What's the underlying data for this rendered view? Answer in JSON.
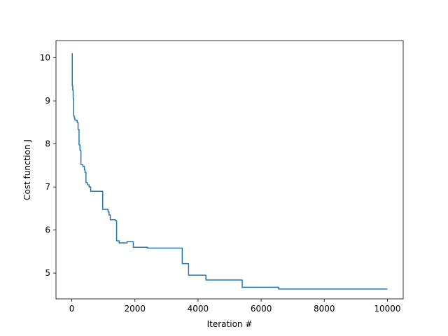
{
  "chart_data": {
    "type": "line",
    "title": "",
    "xlabel": "Iteration #",
    "ylabel": "Cost function J",
    "xlim": [
      -500,
      10500
    ],
    "ylim": [
      4.4,
      10.4
    ],
    "xticks": [
      0,
      2000,
      4000,
      6000,
      8000,
      10000
    ],
    "xtick_labels": [
      "0",
      "2000",
      "4000",
      "6000",
      "8000",
      "10000"
    ],
    "yticks": [
      5,
      6,
      7,
      8,
      9,
      10
    ],
    "ytick_labels": [
      "5",
      "6",
      "7",
      "8",
      "9",
      "10"
    ],
    "grid": false,
    "legend": "none",
    "series": [
      {
        "color": "#1f77b4",
        "step": true,
        "x": [
          0,
          15,
          30,
          45,
          60,
          80,
          100,
          130,
          170,
          200,
          230,
          260,
          290,
          350,
          400,
          420,
          450,
          500,
          550,
          600,
          700,
          800,
          980,
          1150,
          1180,
          1220,
          1380,
          1420,
          1500,
          1700,
          1750,
          1950,
          2400,
          3000,
          3500,
          3700,
          4250,
          5400,
          6000,
          6550,
          10000
        ],
        "y": [
          10.1,
          9.35,
          9.25,
          9.05,
          8.65,
          8.6,
          8.55,
          8.55,
          8.5,
          8.33,
          7.98,
          7.85,
          7.52,
          7.48,
          7.4,
          7.34,
          7.1,
          7.05,
          7.0,
          6.9,
          6.9,
          6.9,
          6.48,
          6.42,
          6.35,
          6.24,
          6.22,
          5.75,
          5.7,
          5.7,
          5.73,
          5.6,
          5.58,
          5.58,
          5.22,
          4.95,
          4.84,
          4.67,
          4.67,
          4.63,
          4.63
        ]
      }
    ]
  }
}
